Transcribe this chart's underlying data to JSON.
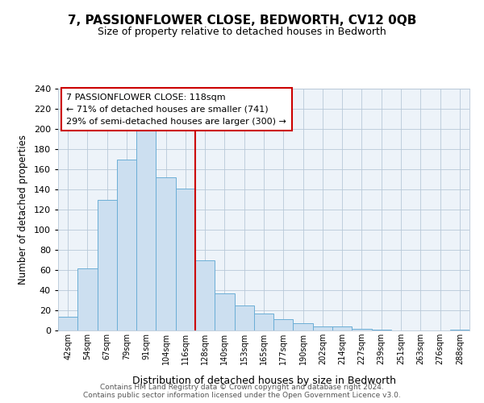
{
  "title": "7, PASSIONFLOWER CLOSE, BEDWORTH, CV12 0QB",
  "subtitle": "Size of property relative to detached houses in Bedworth",
  "xlabel": "Distribution of detached houses by size in Bedworth",
  "ylabel": "Number of detached properties",
  "bar_labels": [
    "42sqm",
    "54sqm",
    "67sqm",
    "79sqm",
    "91sqm",
    "104sqm",
    "116sqm",
    "128sqm",
    "140sqm",
    "153sqm",
    "165sqm",
    "177sqm",
    "190sqm",
    "202sqm",
    "214sqm",
    "227sqm",
    "239sqm",
    "251sqm",
    "263sqm",
    "276sqm",
    "288sqm"
  ],
  "bar_values": [
    14,
    62,
    130,
    170,
    200,
    152,
    141,
    70,
    37,
    25,
    17,
    11,
    7,
    4,
    4,
    2,
    1,
    0,
    0,
    0,
    1
  ],
  "bar_color": "#ccdff0",
  "bar_edge_color": "#6baed6",
  "ylim": [
    0,
    240
  ],
  "yticks": [
    0,
    20,
    40,
    60,
    80,
    100,
    120,
    140,
    160,
    180,
    200,
    220,
    240
  ],
  "vline_x_index": 6.5,
  "vline_color": "#cc0000",
  "annotation_lines": [
    "7 PASSIONFLOWER CLOSE: 118sqm",
    "← 71% of detached houses are smaller (741)",
    "29% of semi-detached houses are larger (300) →"
  ],
  "annotation_box_color": "#ffffff",
  "annotation_box_edge": "#cc0000",
  "footer1": "Contains HM Land Registry data © Crown copyright and database right 2024.",
  "footer2": "Contains public sector information licensed under the Open Government Licence v3.0.",
  "background_color": "#ffffff",
  "grid_color": "#b8c8d8",
  "plot_bg_color": "#edf3f9"
}
